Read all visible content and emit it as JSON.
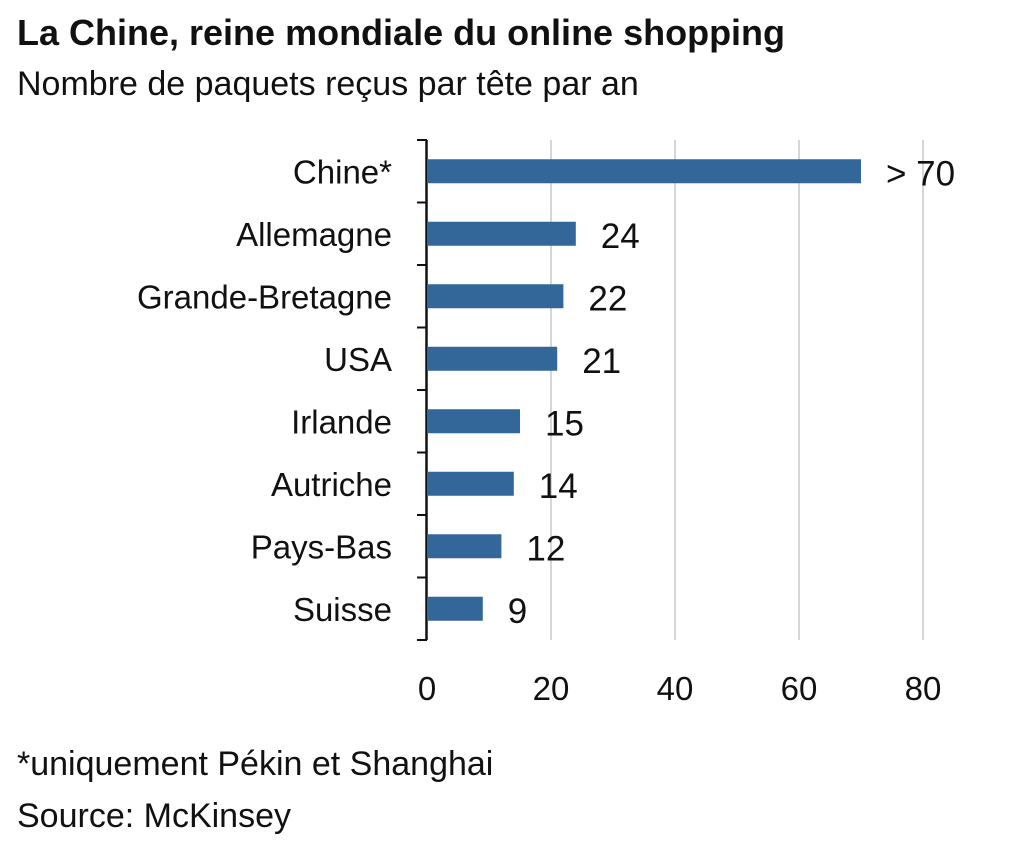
{
  "chart_data": {
    "type": "bar",
    "orientation": "horizontal",
    "title": "La Chine, reine mondiale du online shopping",
    "subtitle": "Nombre de paquets reçus par tête par an",
    "categories": [
      "Chine*",
      "Allemagne",
      "Grande-Bretagne",
      "USA",
      "Irlande",
      "Autriche",
      "Pays-Bas",
      "Suisse"
    ],
    "values": [
      70,
      24,
      22,
      21,
      15,
      14,
      12,
      9
    ],
    "value_labels": [
      "> 70",
      "24",
      "22",
      "21",
      "15",
      "14",
      "12",
      "9"
    ],
    "xlim": [
      0,
      80
    ],
    "x_ticks": [
      0,
      20,
      40,
      60,
      80
    ],
    "x_tick_labels": [
      "0",
      "20",
      "40",
      "60",
      "80"
    ],
    "grid": "vertical",
    "bar_color": "#336699",
    "footnote": "*uniquement Pékin et Shanghai",
    "source": "Source: McKinsey"
  }
}
